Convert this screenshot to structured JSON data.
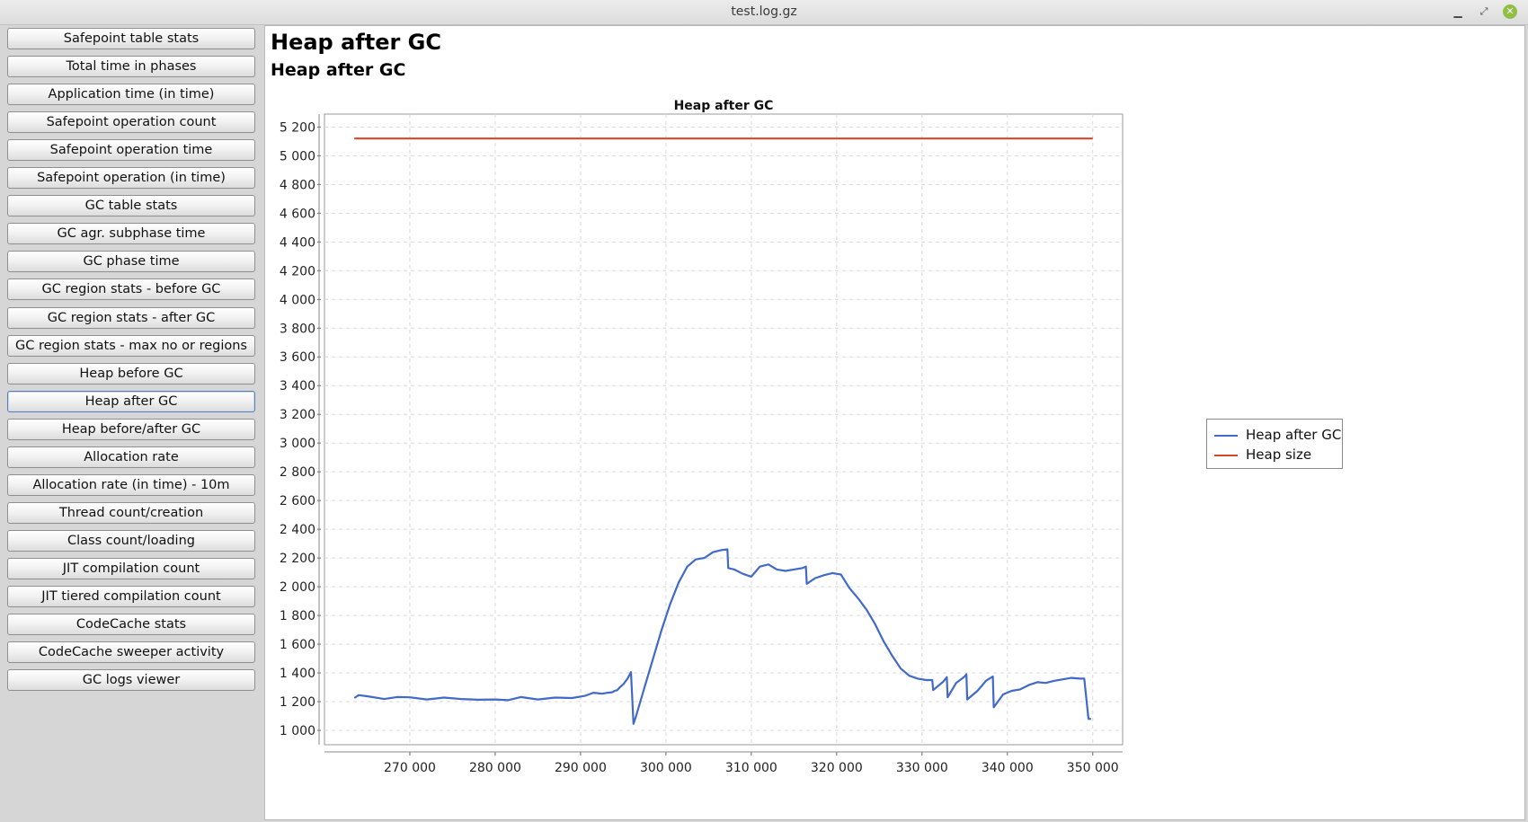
{
  "window": {
    "title": "test.log.gz",
    "controls": {
      "minimize": "▁",
      "maximize": "⤢",
      "close": "✕"
    }
  },
  "sidebar": {
    "active_index": 13,
    "items": [
      {
        "label": "Safepoint table stats"
      },
      {
        "label": "Total time in phases"
      },
      {
        "label": "Application time (in time)"
      },
      {
        "label": "Safepoint operation count"
      },
      {
        "label": "Safepoint operation time"
      },
      {
        "label": "Safepoint operation (in time)"
      },
      {
        "label": "GC table stats"
      },
      {
        "label": "GC agr. subphase time"
      },
      {
        "label": "GC phase time"
      },
      {
        "label": "GC region stats - before GC"
      },
      {
        "label": "GC region stats - after GC"
      },
      {
        "label": "GC region stats - max no or regions"
      },
      {
        "label": "Heap before GC"
      },
      {
        "label": "Heap after GC"
      },
      {
        "label": "Heap before/after GC"
      },
      {
        "label": "Allocation rate"
      },
      {
        "label": "Allocation rate (in time) - 10m"
      },
      {
        "label": "Thread count/creation"
      },
      {
        "label": "Class count/loading"
      },
      {
        "label": "JIT compilation count"
      },
      {
        "label": "JIT tiered compilation count"
      },
      {
        "label": "CodeCache stats"
      },
      {
        "label": "CodeCache sweeper activity"
      },
      {
        "label": "GC logs viewer"
      }
    ]
  },
  "main": {
    "heading": "Heap after GC",
    "subheading": "Heap after GC"
  },
  "chart_data": {
    "type": "line",
    "title": "Heap after GC",
    "xlabel": "",
    "ylabel": "",
    "xlim": [
      260000,
      353500
    ],
    "ylim": [
      900,
      5290
    ],
    "x_ticks": [
      270000,
      280000,
      290000,
      300000,
      310000,
      320000,
      330000,
      340000,
      350000
    ],
    "x_tick_labels": [
      "270 000",
      "280 000",
      "290 000",
      "300 000",
      "310 000",
      "320 000",
      "330 000",
      "340 000",
      "350 000"
    ],
    "y_ticks": [
      1000,
      1200,
      1400,
      1600,
      1800,
      2000,
      2200,
      2400,
      2600,
      2800,
      3000,
      3200,
      3400,
      3600,
      3800,
      4000,
      4200,
      4400,
      4600,
      4800,
      5000,
      5200
    ],
    "y_tick_labels": [
      "1 000",
      "1 200",
      "1 400",
      "1 600",
      "1 800",
      "2 000",
      "2 200",
      "2 400",
      "2 600",
      "2 800",
      "3 000",
      "3 200",
      "3 400",
      "3 600",
      "3 800",
      "4 000",
      "4 200",
      "4 400",
      "4 600",
      "4 800",
      "5 000",
      "5 200"
    ],
    "grid": true,
    "legend_position": "right",
    "series": [
      {
        "name": "Heap after GC",
        "color": "#4169c8",
        "x": [
          263500,
          264000,
          265000,
          267000,
          268500,
          270000,
          272000,
          274000,
          276000,
          278000,
          280000,
          281500,
          283000,
          285000,
          287000,
          289000,
          290500,
          291500,
          292500,
          293200,
          293700,
          294000,
          294300,
          294600,
          295000,
          295500,
          295900,
          296200,
          296500,
          297500,
          298500,
          299500,
          300500,
          301500,
          302500,
          303500,
          304500,
          305500,
          306500,
          307200,
          307300,
          308000,
          309000,
          310000,
          311000,
          312000,
          313000,
          314000,
          315000,
          316000,
          316400,
          316500,
          317500,
          318500,
          319500,
          320500,
          321500,
          322500,
          323500,
          324500,
          325500,
          326500,
          327500,
          328500,
          329500,
          330500,
          331200,
          331300,
          332500,
          332900,
          333000,
          334000,
          335000,
          335200,
          335300,
          336500,
          337500,
          338300,
          338400,
          339500,
          340500,
          341500,
          342500,
          343500,
          344500,
          345500,
          346500,
          347500,
          348500,
          349000,
          349500,
          349800
        ],
        "values": [
          1225,
          1245,
          1238,
          1218,
          1232,
          1230,
          1215,
          1228,
          1218,
          1213,
          1215,
          1210,
          1232,
          1215,
          1228,
          1225,
          1240,
          1262,
          1255,
          1262,
          1265,
          1275,
          1280,
          1300,
          1320,
          1360,
          1405,
          1045,
          1100,
          1300,
          1500,
          1700,
          1880,
          2030,
          2140,
          2190,
          2200,
          2240,
          2255,
          2260,
          2130,
          2120,
          2090,
          2070,
          2140,
          2155,
          2120,
          2110,
          2120,
          2130,
          2140,
          2020,
          2060,
          2080,
          2095,
          2085,
          1990,
          1920,
          1840,
          1740,
          1620,
          1520,
          1430,
          1380,
          1360,
          1350,
          1350,
          1280,
          1340,
          1370,
          1230,
          1330,
          1375,
          1390,
          1215,
          1275,
          1345,
          1375,
          1160,
          1250,
          1275,
          1285,
          1315,
          1335,
          1330,
          1345,
          1355,
          1365,
          1360,
          1360,
          1080,
          1080
        ]
      },
      {
        "name": "Heap size",
        "color": "#d2492a",
        "x": [
          263500,
          350000
        ],
        "values": [
          5120,
          5120
        ]
      }
    ]
  }
}
